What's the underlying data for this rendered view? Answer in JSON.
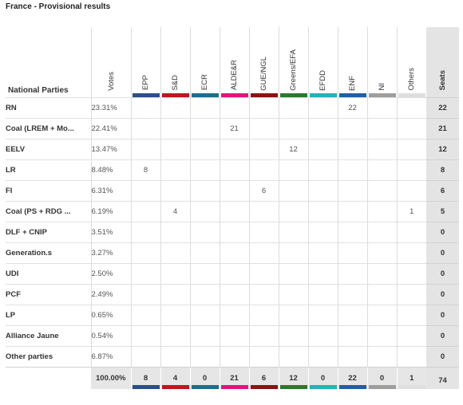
{
  "page_title": "France - Provisional results",
  "header": {
    "party_label": "National Parties",
    "votes_label": "Votes",
    "seats_label": "Seats"
  },
  "groups": [
    {
      "label": "EPP",
      "color": "#2b4e8c"
    },
    {
      "label": "S&D",
      "color": "#c0161d"
    },
    {
      "label": "ECR",
      "color": "#1b6f8e"
    },
    {
      "label": "ALDE&R",
      "color": "#e5127e"
    },
    {
      "label": "GUE/NGL",
      "color": "#8b1313"
    },
    {
      "label": "Greens/EFA",
      "color": "#2b7a2b"
    },
    {
      "label": "EFDD",
      "color": "#23b3b8"
    },
    {
      "label": "ENF",
      "color": "#1f5fa8"
    },
    {
      "label": "NI",
      "color": "#9e9e9e"
    },
    {
      "label": "Others",
      "color": "#dedede"
    }
  ],
  "rows": [
    {
      "party": "RN",
      "votes": "23.31%",
      "groups": [
        "",
        "",
        "",
        "",
        "",
        "",
        "",
        "22",
        "",
        ""
      ],
      "seats": "22"
    },
    {
      "party": "Coal (LREM + Mo...",
      "votes": "22.41%",
      "groups": [
        "",
        "",
        "",
        "21",
        "",
        "",
        "",
        "",
        "",
        ""
      ],
      "seats": "21"
    },
    {
      "party": "EELV",
      "votes": "13.47%",
      "groups": [
        "",
        "",
        "",
        "",
        "",
        "12",
        "",
        "",
        "",
        ""
      ],
      "seats": "12"
    },
    {
      "party": "LR",
      "votes": "8.48%",
      "groups": [
        "8",
        "",
        "",
        "",
        "",
        "",
        "",
        "",
        "",
        ""
      ],
      "seats": "8"
    },
    {
      "party": "FI",
      "votes": "6.31%",
      "groups": [
        "",
        "",
        "",
        "",
        "6",
        "",
        "",
        "",
        "",
        ""
      ],
      "seats": "6"
    },
    {
      "party": "Coal (PS + RDG ...",
      "votes": "6.19%",
      "groups": [
        "",
        "4",
        "",
        "",
        "",
        "",
        "",
        "",
        "",
        "1"
      ],
      "seats": "5"
    },
    {
      "party": "DLF + CNIP",
      "votes": "3.51%",
      "groups": [
        "",
        "",
        "",
        "",
        "",
        "",
        "",
        "",
        "",
        ""
      ],
      "seats": "0"
    },
    {
      "party": "Generation.s",
      "votes": "3.27%",
      "groups": [
        "",
        "",
        "",
        "",
        "",
        "",
        "",
        "",
        "",
        ""
      ],
      "seats": "0"
    },
    {
      "party": "UDI",
      "votes": "2.50%",
      "groups": [
        "",
        "",
        "",
        "",
        "",
        "",
        "",
        "",
        "",
        ""
      ],
      "seats": "0"
    },
    {
      "party": "PCF",
      "votes": "2.49%",
      "groups": [
        "",
        "",
        "",
        "",
        "",
        "",
        "",
        "",
        "",
        ""
      ],
      "seats": "0"
    },
    {
      "party": "LP",
      "votes": "0.65%",
      "groups": [
        "",
        "",
        "",
        "",
        "",
        "",
        "",
        "",
        "",
        ""
      ],
      "seats": "0"
    },
    {
      "party": "Alliance Jaune",
      "votes": "0.54%",
      "groups": [
        "",
        "",
        "",
        "",
        "",
        "",
        "",
        "",
        "",
        ""
      ],
      "seats": "0"
    },
    {
      "party": "Other parties",
      "votes": "6.87%",
      "groups": [
        "",
        "",
        "",
        "",
        "",
        "",
        "",
        "",
        "",
        ""
      ],
      "seats": "0"
    }
  ],
  "totals": {
    "votes": "100.00%",
    "groups": [
      "8",
      "4",
      "0",
      "21",
      "6",
      "12",
      "0",
      "22",
      "0",
      "1"
    ],
    "seats": "74"
  }
}
